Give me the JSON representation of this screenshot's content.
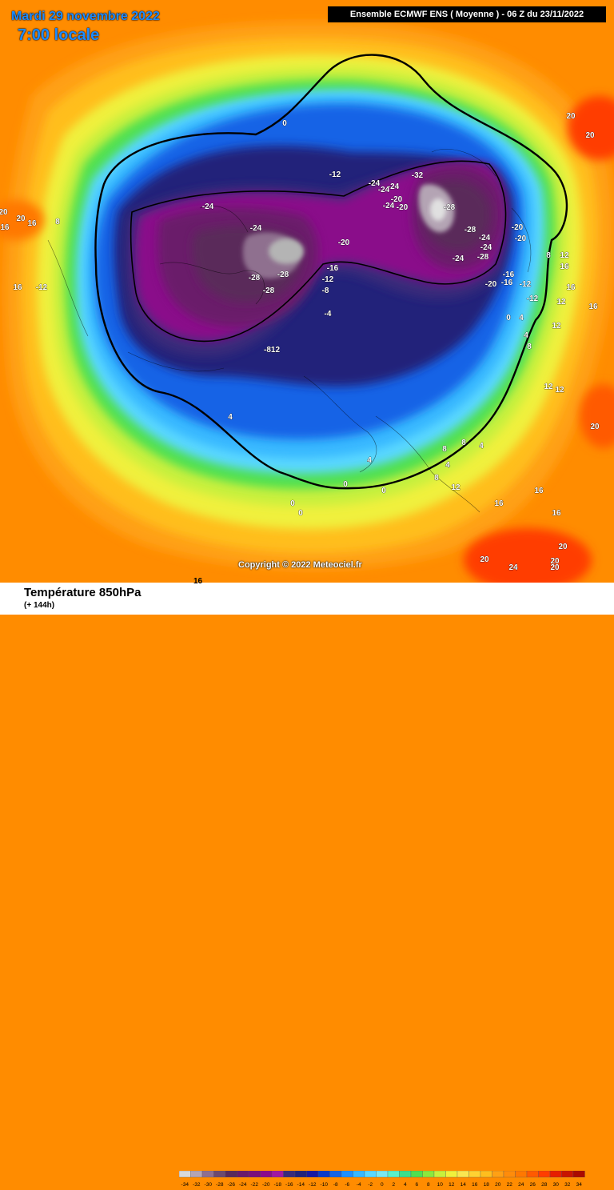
{
  "header": {
    "date": "Mardi 29 novembre 2022",
    "local_time": "7:00 locale",
    "run_info": "Ensemble ECMWF ENS  ( Moyenne )  -  06 Z du 23/11/2022"
  },
  "copyright": "Copyright © 2022 Meteociel.fr",
  "footer": {
    "variable": "Température 850hPa",
    "range": "(+ 144h)",
    "extra_label": "16"
  },
  "legend": {
    "values": [
      "-34",
      "-32",
      "-30",
      "-28",
      "-26",
      "-24",
      "-22",
      "-20",
      "-18",
      "-16",
      "-14",
      "-12",
      "-10",
      "-8",
      "-6",
      "-4",
      "-2",
      "0",
      "2",
      "4",
      "6",
      "8",
      "10",
      "12",
      "14",
      "16",
      "18",
      "20",
      "22",
      "24",
      "26",
      "28",
      "30",
      "32",
      "34"
    ],
    "colors": [
      "#d9d9d9",
      "#b4a4b4",
      "#8f6f8f",
      "#6e4a6e",
      "#5a2a5a",
      "#6a1a6a",
      "#7a0f7a",
      "#8a0b8a",
      "#a018a0",
      "#3a2a7a",
      "#22227a",
      "#1818a0",
      "#0a3ac8",
      "#1464e6",
      "#1e90ff",
      "#38b8ff",
      "#5ad8ff",
      "#7ae8f0",
      "#5af0c8",
      "#3ce08c",
      "#50e050",
      "#8ce83c",
      "#c8f03c",
      "#f0f03c",
      "#fae650",
      "#ffd232",
      "#ffbe1e",
      "#ffa014",
      "#ff8c0a",
      "#ff7800",
      "#ff5a00",
      "#ff3c00",
      "#e61e00",
      "#c81400",
      "#aa0a00"
    ]
  },
  "contour_labels": [
    {
      "text": "0",
      "lon": 356,
      "lat": 157
    },
    {
      "text": "-12",
      "lon": 419,
      "lat": 221
    },
    {
      "text": "-24",
      "lon": 260,
      "lat": 261
    },
    {
      "text": "-24",
      "lon": 320,
      "lat": 288
    },
    {
      "text": "-20",
      "lon": 430,
      "lat": 306
    },
    {
      "text": "-16",
      "lon": 416,
      "lat": 338
    },
    {
      "text": "-12",
      "lon": 410,
      "lat": 352
    },
    {
      "text": "-8",
      "lon": 407,
      "lat": 366
    },
    {
      "text": "-28",
      "lon": 318,
      "lat": 350
    },
    {
      "text": "-28",
      "lon": 354,
      "lat": 346
    },
    {
      "text": "-28",
      "lon": 336,
      "lat": 366
    },
    {
      "text": "-4",
      "lon": 410,
      "lat": 395
    },
    {
      "text": "-812",
      "lon": 340,
      "lat": 440
    },
    {
      "text": "-24",
      "lon": 468,
      "lat": 232
    },
    {
      "text": "-24",
      "lon": 492,
      "lat": 236
    },
    {
      "text": "-24",
      "lon": 480,
      "lat": 240
    },
    {
      "text": "-20",
      "lon": 496,
      "lat": 252
    },
    {
      "text": "-24",
      "lon": 486,
      "lat": 260
    },
    {
      "text": "-20",
      "lon": 503,
      "lat": 262
    },
    {
      "text": "-32",
      "lon": 522,
      "lat": 222
    },
    {
      "text": "-28",
      "lon": 562,
      "lat": 262
    },
    {
      "text": "-28",
      "lon": 588,
      "lat": 290
    },
    {
      "text": "-24",
      "lon": 606,
      "lat": 300
    },
    {
      "text": "-24",
      "lon": 608,
      "lat": 312
    },
    {
      "text": "-28",
      "lon": 604,
      "lat": 324
    },
    {
      "text": "-24",
      "lon": 573,
      "lat": 326
    },
    {
      "text": "-20",
      "lon": 647,
      "lat": 287
    },
    {
      "text": "-20",
      "lon": 651,
      "lat": 301
    },
    {
      "text": "-16",
      "lon": 636,
      "lat": 346
    },
    {
      "text": "-16",
      "lon": 634,
      "lat": 356
    },
    {
      "text": "-20",
      "lon": 614,
      "lat": 358
    },
    {
      "text": "-12",
      "lon": 657,
      "lat": 358
    },
    {
      "text": "-12",
      "lon": 666,
      "lat": 376
    },
    {
      "text": "8",
      "lon": 686,
      "lat": 322
    },
    {
      "text": "12",
      "lon": 706,
      "lat": 322
    },
    {
      "text": "16",
      "lon": 706,
      "lat": 336
    },
    {
      "text": "16",
      "lon": 714,
      "lat": 362
    },
    {
      "text": "12",
      "lon": 702,
      "lat": 380
    },
    {
      "text": "16",
      "lon": 742,
      "lat": 386
    },
    {
      "text": "0",
      "lon": 636,
      "lat": 400
    },
    {
      "text": "4",
      "lon": 652,
      "lat": 400
    },
    {
      "text": "4",
      "lon": 658,
      "lat": 422
    },
    {
      "text": "8",
      "lon": 662,
      "lat": 436
    },
    {
      "text": "12",
      "lon": 696,
      "lat": 410
    },
    {
      "text": "12",
      "lon": 686,
      "lat": 486
    },
    {
      "text": "12",
      "lon": 700,
      "lat": 490
    },
    {
      "text": "20",
      "lon": 744,
      "lat": 536
    },
    {
      "text": "20",
      "lon": 714,
      "lat": 148
    },
    {
      "text": "20",
      "lon": 738,
      "lat": 172
    },
    {
      "text": "4",
      "lon": 288,
      "lat": 524
    },
    {
      "text": "20",
      "lon": 26,
      "lat": 276
    },
    {
      "text": "16",
      "lon": 40,
      "lat": 282
    },
    {
      "text": "16",
      "lon": 6,
      "lat": 287
    },
    {
      "text": "20",
      "lon": 4,
      "lat": 268
    },
    {
      "text": "8",
      "lon": 72,
      "lat": 280
    },
    {
      "text": "16",
      "lon": 22,
      "lat": 362
    },
    {
      "text": "-12",
      "lon": 52,
      "lat": 362
    },
    {
      "text": "4",
      "lon": 462,
      "lat": 578
    },
    {
      "text": "0",
      "lon": 432,
      "lat": 608
    },
    {
      "text": "0",
      "lon": 480,
      "lat": 616
    },
    {
      "text": "0",
      "lon": 366,
      "lat": 632
    },
    {
      "text": "0",
      "lon": 376,
      "lat": 644
    },
    {
      "text": "8",
      "lon": 556,
      "lat": 564
    },
    {
      "text": "8",
      "lon": 580,
      "lat": 556
    },
    {
      "text": "4",
      "lon": 560,
      "lat": 584
    },
    {
      "text": "8",
      "lon": 546,
      "lat": 600
    },
    {
      "text": "12",
      "lon": 570,
      "lat": 612
    },
    {
      "text": "4",
      "lon": 602,
      "lat": 560
    },
    {
      "text": "16",
      "lon": 624,
      "lat": 632
    },
    {
      "text": "16",
      "lon": 674,
      "lat": 616
    },
    {
      "text": "16",
      "lon": 696,
      "lat": 644
    },
    {
      "text": "20",
      "lon": 704,
      "lat": 686
    },
    {
      "text": "20",
      "lon": 694,
      "lat": 704
    },
    {
      "text": "20",
      "lon": 694,
      "lat": 712
    },
    {
      "text": "20",
      "lon": 606,
      "lat": 702
    },
    {
      "text": "24",
      "lon": 642,
      "lat": 712
    }
  ]
}
